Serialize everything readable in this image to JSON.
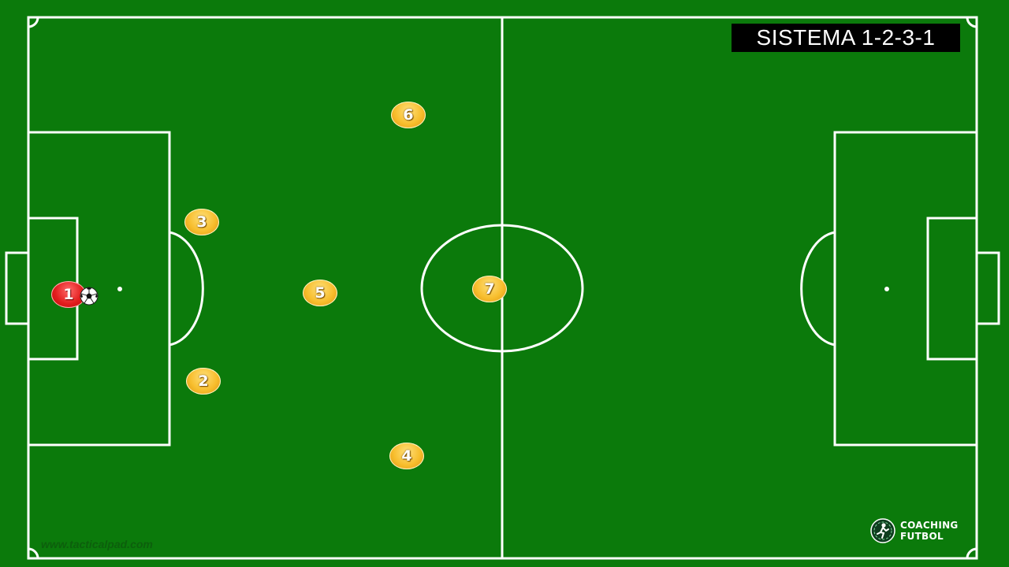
{
  "title": "SISTEMA 1-2-3-1",
  "watermark": "www.tacticalpad.com",
  "brand": {
    "line1": "COACHING",
    "line2": "FUTBOL"
  },
  "colors": {
    "pitch": "#0b7a0b",
    "lines": "#ffffff",
    "team": "#f7bd2c",
    "goalkeeper": "#e21d1d"
  },
  "players": [
    {
      "number": "1",
      "role": "goalkeeper",
      "color": "red"
    },
    {
      "number": "2",
      "color": "yellow"
    },
    {
      "number": "3",
      "color": "yellow"
    },
    {
      "number": "4",
      "color": "yellow"
    },
    {
      "number": "5",
      "color": "yellow"
    },
    {
      "number": "6",
      "color": "yellow"
    },
    {
      "number": "7",
      "color": "yellow"
    }
  ],
  "ball": {
    "icon": "soccer-ball-icon"
  }
}
